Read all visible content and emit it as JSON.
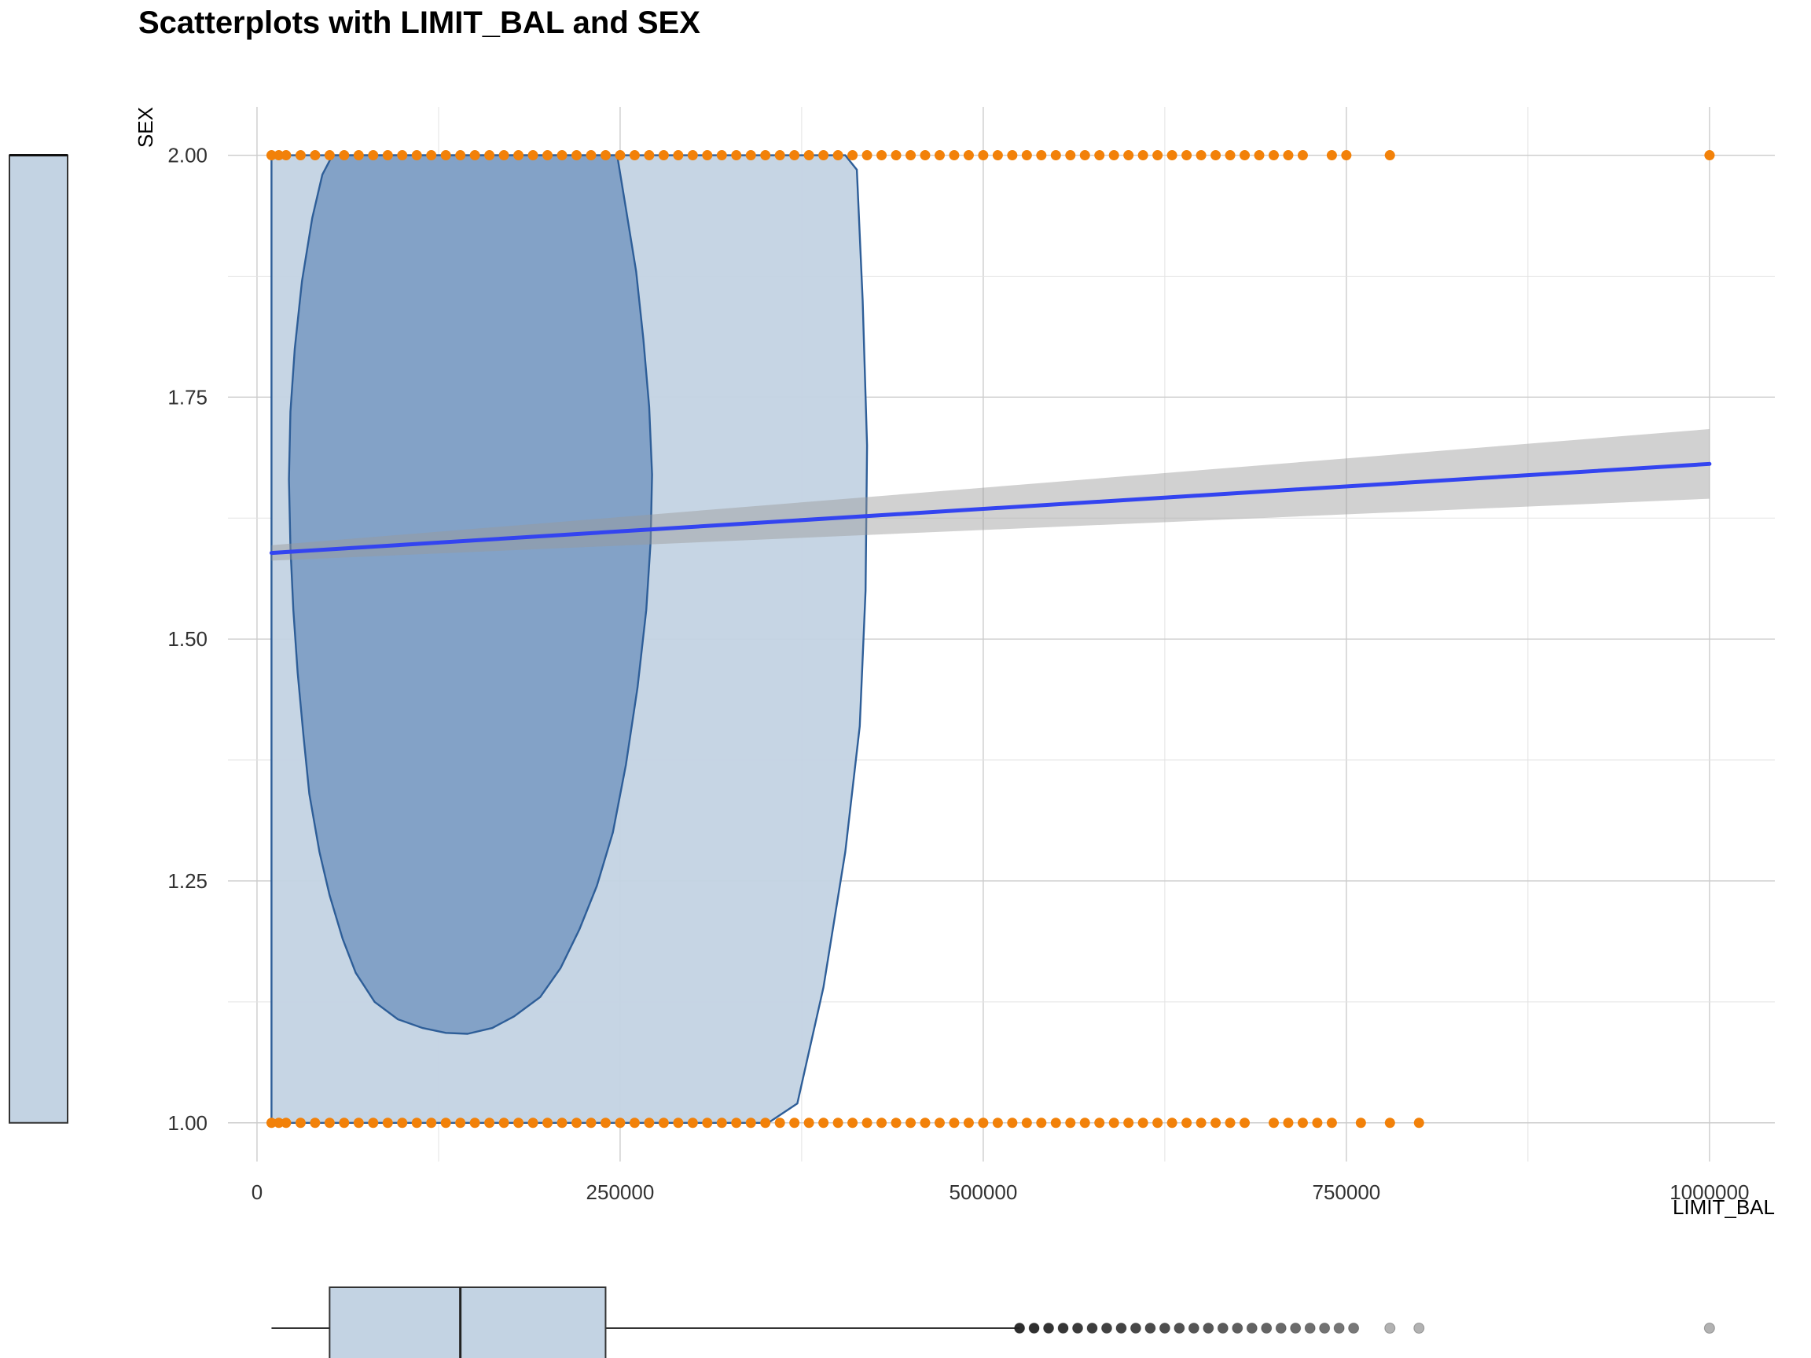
{
  "chart_data": {
    "type": "scatter",
    "title": "Scatterplots with LIMIT_BAL and SEX",
    "xlabel": "LIMIT_BAL",
    "ylabel": "SEX",
    "xlim": [
      -20000,
      1045000
    ],
    "ylim": [
      0.96,
      2.05
    ],
    "grid": true,
    "x_ticks": [
      0,
      250000,
      500000,
      750000,
      1000000
    ],
    "x_tick_labels": [
      "0",
      "250000",
      "500000",
      "750000",
      "1000000"
    ],
    "y_ticks": [
      1.0,
      1.25,
      1.5,
      1.75,
      2.0
    ],
    "y_tick_labels": [
      "1.00",
      "1.25",
      "1.50",
      "1.75",
      "2.00"
    ],
    "colors": {
      "points": "#f28109",
      "regression_line": "#3344f0",
      "confidence_band": "#999999",
      "density_outer": "#c3d3e3",
      "density_inner": "#7f9fc5",
      "density_stroke": "#2e5e98",
      "marginal_box": "#c3d3e3",
      "gridline": "#cccccc"
    },
    "points_sex2_x": [
      10000,
      15000,
      20000,
      30000,
      40000,
      50000,
      60000,
      70000,
      80000,
      90000,
      100000,
      110000,
      120000,
      130000,
      140000,
      150000,
      160000,
      170000,
      180000,
      190000,
      200000,
      210000,
      220000,
      230000,
      240000,
      250000,
      260000,
      270000,
      280000,
      290000,
      300000,
      310000,
      320000,
      330000,
      340000,
      350000,
      360000,
      370000,
      380000,
      390000,
      400000,
      410000,
      420000,
      430000,
      440000,
      450000,
      460000,
      470000,
      480000,
      490000,
      500000,
      510000,
      520000,
      530000,
      540000,
      550000,
      560000,
      570000,
      580000,
      590000,
      600000,
      610000,
      620000,
      630000,
      640000,
      650000,
      660000,
      670000,
      680000,
      690000,
      700000,
      710000,
      720000,
      740000,
      750000,
      780000,
      1000000
    ],
    "points_sex1_x": [
      10000,
      15000,
      20000,
      30000,
      40000,
      50000,
      60000,
      70000,
      80000,
      90000,
      100000,
      110000,
      120000,
      130000,
      140000,
      150000,
      160000,
      170000,
      180000,
      190000,
      200000,
      210000,
      220000,
      230000,
      240000,
      250000,
      260000,
      270000,
      280000,
      290000,
      300000,
      310000,
      320000,
      330000,
      340000,
      350000,
      360000,
      370000,
      380000,
      390000,
      400000,
      410000,
      420000,
      430000,
      440000,
      450000,
      460000,
      470000,
      480000,
      490000,
      500000,
      510000,
      520000,
      530000,
      540000,
      550000,
      560000,
      570000,
      580000,
      590000,
      600000,
      610000,
      620000,
      630000,
      640000,
      650000,
      660000,
      670000,
      680000,
      700000,
      710000,
      720000,
      730000,
      740000,
      760000,
      780000,
      800000
    ],
    "regression": {
      "x": [
        10000,
        1000000
      ],
      "y": [
        1.589,
        1.681
      ],
      "ci_lower": [
        1.581,
        1.645
      ],
      "ci_upper": [
        1.597,
        1.717
      ]
    },
    "density_outer": [
      [
        10000,
        1.0
      ],
      [
        10000,
        2.0
      ],
      [
        405000,
        2.0
      ],
      [
        413000,
        1.985
      ],
      [
        417000,
        1.85
      ],
      [
        420000,
        1.7
      ],
      [
        419000,
        1.55
      ],
      [
        415000,
        1.41
      ],
      [
        405000,
        1.28
      ],
      [
        390000,
        1.14
      ],
      [
        372000,
        1.02
      ],
      [
        352000,
        1.0
      ]
    ],
    "density_inner": [
      [
        145000,
        1.092
      ],
      [
        162000,
        1.098
      ],
      [
        177000,
        1.11
      ],
      [
        195000,
        1.13
      ],
      [
        209000,
        1.16
      ],
      [
        222000,
        1.2
      ],
      [
        234000,
        1.245
      ],
      [
        245000,
        1.3
      ],
      [
        254000,
        1.37
      ],
      [
        262000,
        1.45
      ],
      [
        268000,
        1.53
      ],
      [
        271000,
        1.6
      ],
      [
        272000,
        1.67
      ],
      [
        270000,
        1.74
      ],
      [
        266000,
        1.81
      ],
      [
        261000,
        1.88
      ],
      [
        254000,
        1.945
      ],
      [
        248000,
        2.0
      ],
      [
        52000,
        2.0
      ],
      [
        45000,
        1.98
      ],
      [
        38000,
        1.935
      ],
      [
        31000,
        1.87
      ],
      [
        26000,
        1.8
      ],
      [
        23000,
        1.735
      ],
      [
        22000,
        1.665
      ],
      [
        23000,
        1.595
      ],
      [
        25000,
        1.53
      ],
      [
        28000,
        1.465
      ],
      [
        32000,
        1.4
      ],
      [
        36000,
        1.34
      ],
      [
        43000,
        1.28
      ],
      [
        50000,
        1.235
      ],
      [
        59000,
        1.19
      ],
      [
        68000,
        1.155
      ],
      [
        81000,
        1.125
      ],
      [
        97000,
        1.107
      ],
      [
        114000,
        1.098
      ],
      [
        130000,
        1.093
      ]
    ],
    "marginal_x_box": {
      "q1": 50000,
      "median": 140000,
      "q3": 240000,
      "whisker_low": 10000,
      "whisker_high": 525000
    },
    "marginal_x_outliers": [
      525000,
      535000,
      545000,
      555000,
      565000,
      575000,
      585000,
      595000,
      605000,
      615000,
      625000,
      635000,
      645000,
      655000,
      665000,
      675000,
      685000,
      695000,
      705000,
      715000,
      725000,
      735000,
      745000,
      755000,
      780000,
      800000,
      1000000
    ],
    "marginal_y_box": {
      "q1": 1.0,
      "median": 2.0,
      "q3": 2.0
    }
  }
}
